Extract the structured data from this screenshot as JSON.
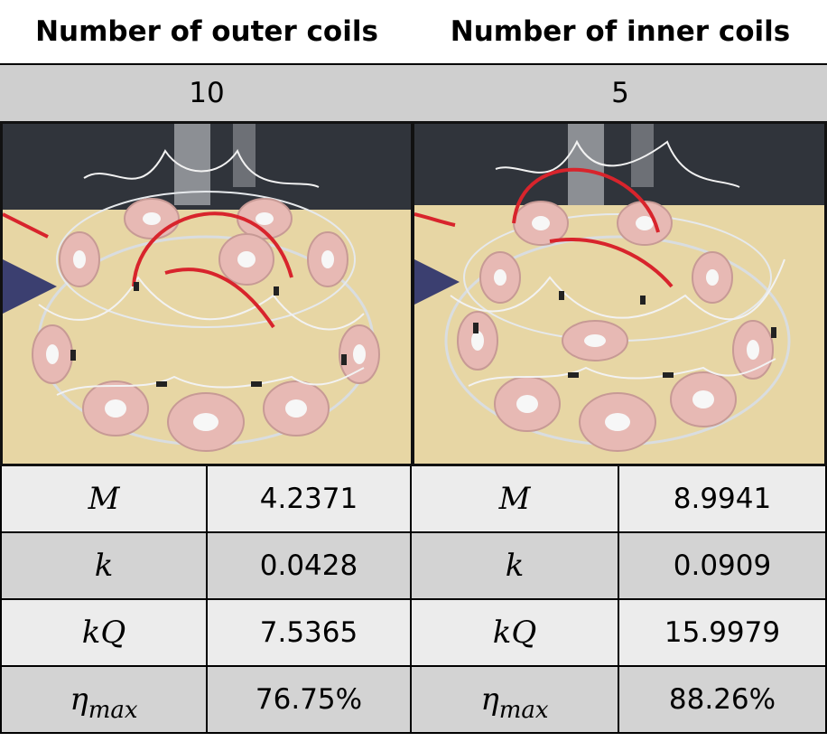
{
  "header": {
    "outer_label": "Number of outer coils",
    "inner_label": "Number of inner coils"
  },
  "counts": {
    "outer": "10",
    "inner": "5"
  },
  "photos": {
    "left_description_icon": "coil-array-photo",
    "right_description_icon": "coil-array-photo"
  },
  "metrics": [
    {
      "symbol": "M",
      "sub": "",
      "outer": "4.2371",
      "inner": "8.9941"
    },
    {
      "symbol": "k",
      "sub": "",
      "outer": "0.0428",
      "inner": "0.0909"
    },
    {
      "symbol": "kQ",
      "sub": "",
      "outer": "7.5365",
      "inner": "15.9979"
    },
    {
      "symbol": "η",
      "sub": "max",
      "outer": "76.75%",
      "inner": "88.26%"
    }
  ],
  "colors": {
    "count_row": "#cfcfcf",
    "row_light": "#ececec",
    "row_dark": "#d3d3d3",
    "coil": "#e7b9b4",
    "wire_red": "#d8242c",
    "table_surface": "#e7d6a4"
  }
}
